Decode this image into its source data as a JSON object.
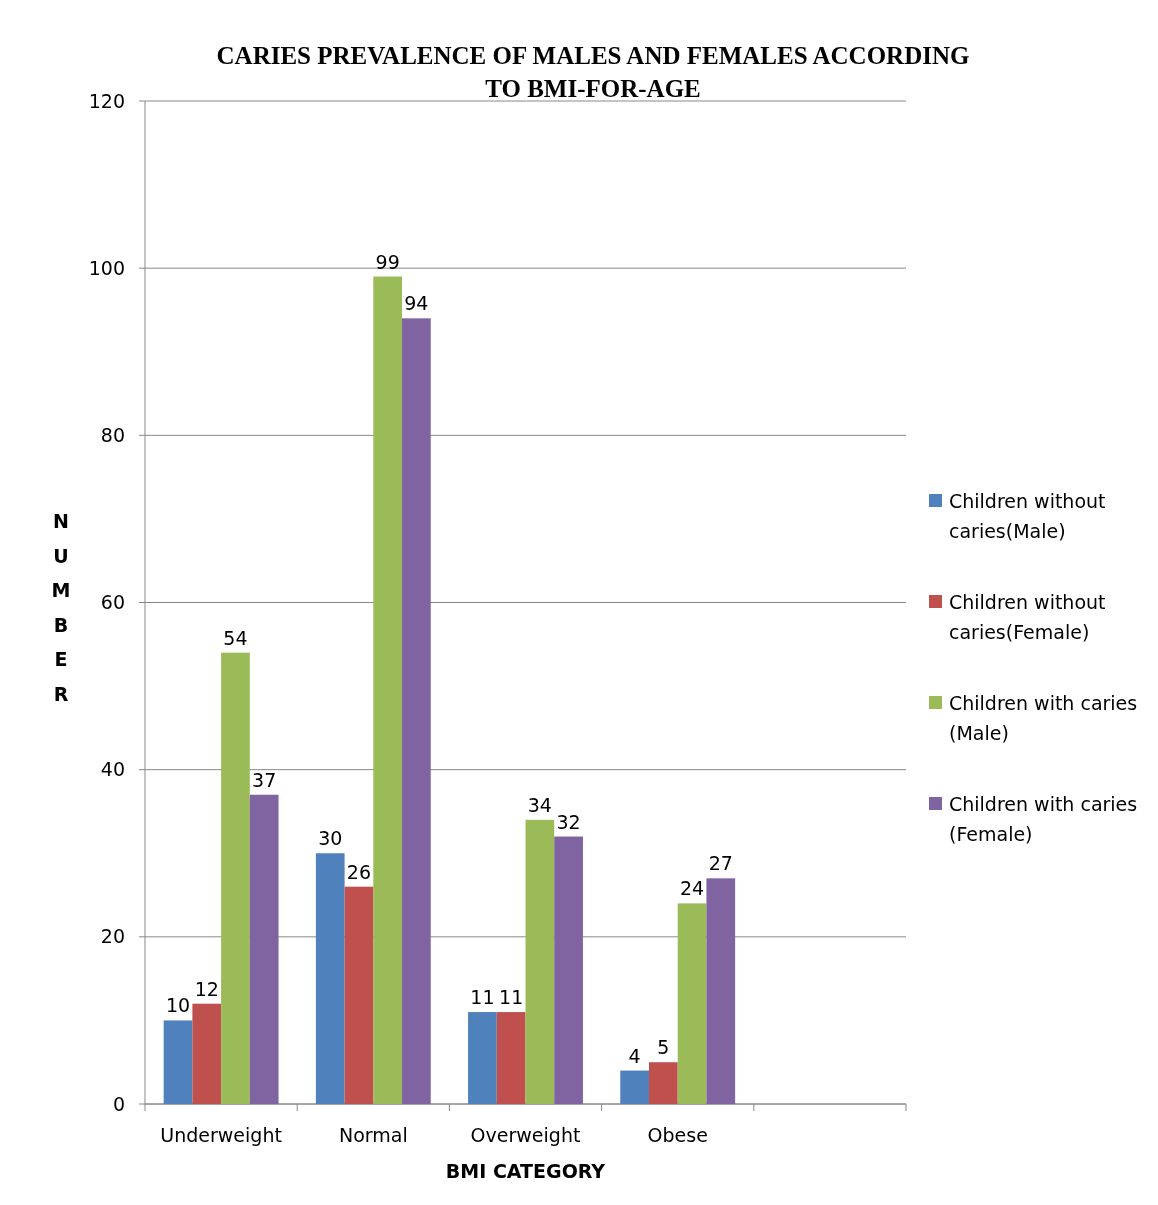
{
  "chart_data": {
    "type": "bar",
    "title": "CARIES PREVALENCE OF MALES AND FEMALES ACCORDING TO BMI-FOR-AGE",
    "xlabel": "BMI CATEGORY",
    "ylabel": "NUMBER",
    "categories": [
      "Underweight",
      "Normal",
      "Overweight",
      "Obese",
      null
    ],
    "series": [
      {
        "name": "Children without caries(Male)",
        "color": "#4f81bd",
        "values": [
          10,
          30,
          11,
          4,
          null
        ]
      },
      {
        "name": "Children without caries(Female)",
        "color": "#c0504d",
        "values": [
          12,
          26,
          11,
          5,
          null
        ]
      },
      {
        "name": "Children with caries (Male)",
        "color": "#9bbb59",
        "values": [
          54,
          99,
          34,
          24,
          null
        ]
      },
      {
        "name": "Children with caries (Female)",
        "color": "#8064a2",
        "values": [
          37,
          94,
          32,
          27,
          null
        ]
      }
    ],
    "ylim": [
      0,
      120
    ],
    "yticks": [
      0,
      20,
      40,
      60,
      80,
      100,
      120
    ],
    "grid": "y",
    "legend": "right",
    "data_labels": true
  }
}
